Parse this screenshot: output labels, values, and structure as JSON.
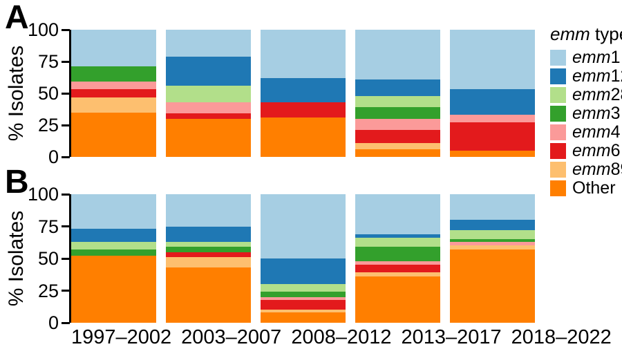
{
  "figure": {
    "panels": [
      {
        "label": "A",
        "y_axis_title": "% Isolates"
      },
      {
        "label": "B",
        "y_axis_title": "% Isolates"
      }
    ],
    "y_ticks": [
      "100",
      "75",
      "50",
      "25",
      "0"
    ]
  },
  "legend": {
    "title_prefix": "emm",
    "title_suffix": " type",
    "items": [
      {
        "prefix": "emm",
        "suffix": "1",
        "color": "#a6cee3"
      },
      {
        "prefix": "emm",
        "suffix": "12",
        "color": "#1f78b4"
      },
      {
        "prefix": "emm",
        "suffix": "28",
        "color": "#b2df8a"
      },
      {
        "prefix": "emm",
        "suffix": "3",
        "color": "#33a02c"
      },
      {
        "prefix": "emm",
        "suffix": "4",
        "color": "#fb9a99"
      },
      {
        "prefix": "emm",
        "suffix": "6",
        "color": "#e31a1c"
      },
      {
        "prefix": "emm",
        "suffix": "89",
        "color": "#fdbf6f"
      },
      {
        "prefix": "",
        "suffix": "Other",
        "color": "#ff7f00"
      }
    ]
  },
  "chart_data": [
    {
      "type": "bar",
      "stacked": true,
      "panel": "A",
      "ylabel": "% Isolates",
      "ylim": [
        0,
        100
      ],
      "legend_position": "right",
      "grid": false,
      "categories": [
        "1997–2002",
        "2003–2007",
        "2008–2012",
        "2013–2017",
        "2018–2022"
      ],
      "series": [
        {
          "name": "emm1",
          "color": "#a6cee3",
          "values": [
            29,
            21,
            38,
            39,
            47
          ]
        },
        {
          "name": "emm12",
          "color": "#1f78b4",
          "values": [
            0,
            23,
            19,
            13,
            20
          ]
        },
        {
          "name": "emm28",
          "color": "#b2df8a",
          "values": [
            0,
            13,
            0,
            9,
            0
          ]
        },
        {
          "name": "emm3",
          "color": "#33a02c",
          "values": [
            12,
            0,
            0,
            9,
            0
          ]
        },
        {
          "name": "emm4",
          "color": "#fb9a99",
          "values": [
            6,
            9,
            0,
            9,
            6
          ]
        },
        {
          "name": "emm6",
          "color": "#e31a1c",
          "values": [
            6,
            4,
            12,
            10,
            22
          ]
        },
        {
          "name": "emm89",
          "color": "#fdbf6f",
          "values": [
            12,
            0,
            0,
            5,
            0
          ]
        },
        {
          "name": "Other",
          "color": "#ff7f00",
          "values": [
            35,
            30,
            31,
            6,
            5
          ]
        }
      ]
    },
    {
      "type": "bar",
      "stacked": true,
      "panel": "B",
      "ylabel": "% Isolates",
      "ylim": [
        0,
        100
      ],
      "grid": false,
      "categories": [
        "1997–2002",
        "2003–2007",
        "2008–2012",
        "2013–2017",
        "2018–2022"
      ],
      "series": [
        {
          "name": "emm1",
          "color": "#a6cee3",
          "values": [
            27,
            25,
            50,
            31,
            20
          ]
        },
        {
          "name": "emm12",
          "color": "#1f78b4",
          "values": [
            10,
            12,
            20,
            3,
            8
          ]
        },
        {
          "name": "emm28",
          "color": "#b2df8a",
          "values": [
            6,
            4,
            6,
            7,
            7
          ]
        },
        {
          "name": "emm3",
          "color": "#33a02c",
          "values": [
            5,
            4,
            4,
            11,
            2
          ]
        },
        {
          "name": "emm4",
          "color": "#fb9a99",
          "values": [
            0,
            0,
            2,
            3,
            3
          ]
        },
        {
          "name": "emm6",
          "color": "#e31a1c",
          "values": [
            0,
            4,
            8,
            6,
            0
          ]
        },
        {
          "name": "emm89",
          "color": "#fdbf6f",
          "values": [
            0,
            8,
            2,
            3,
            3
          ]
        },
        {
          "name": "Other",
          "color": "#ff7f00",
          "values": [
            52,
            43,
            8,
            36,
            57
          ]
        }
      ]
    }
  ]
}
